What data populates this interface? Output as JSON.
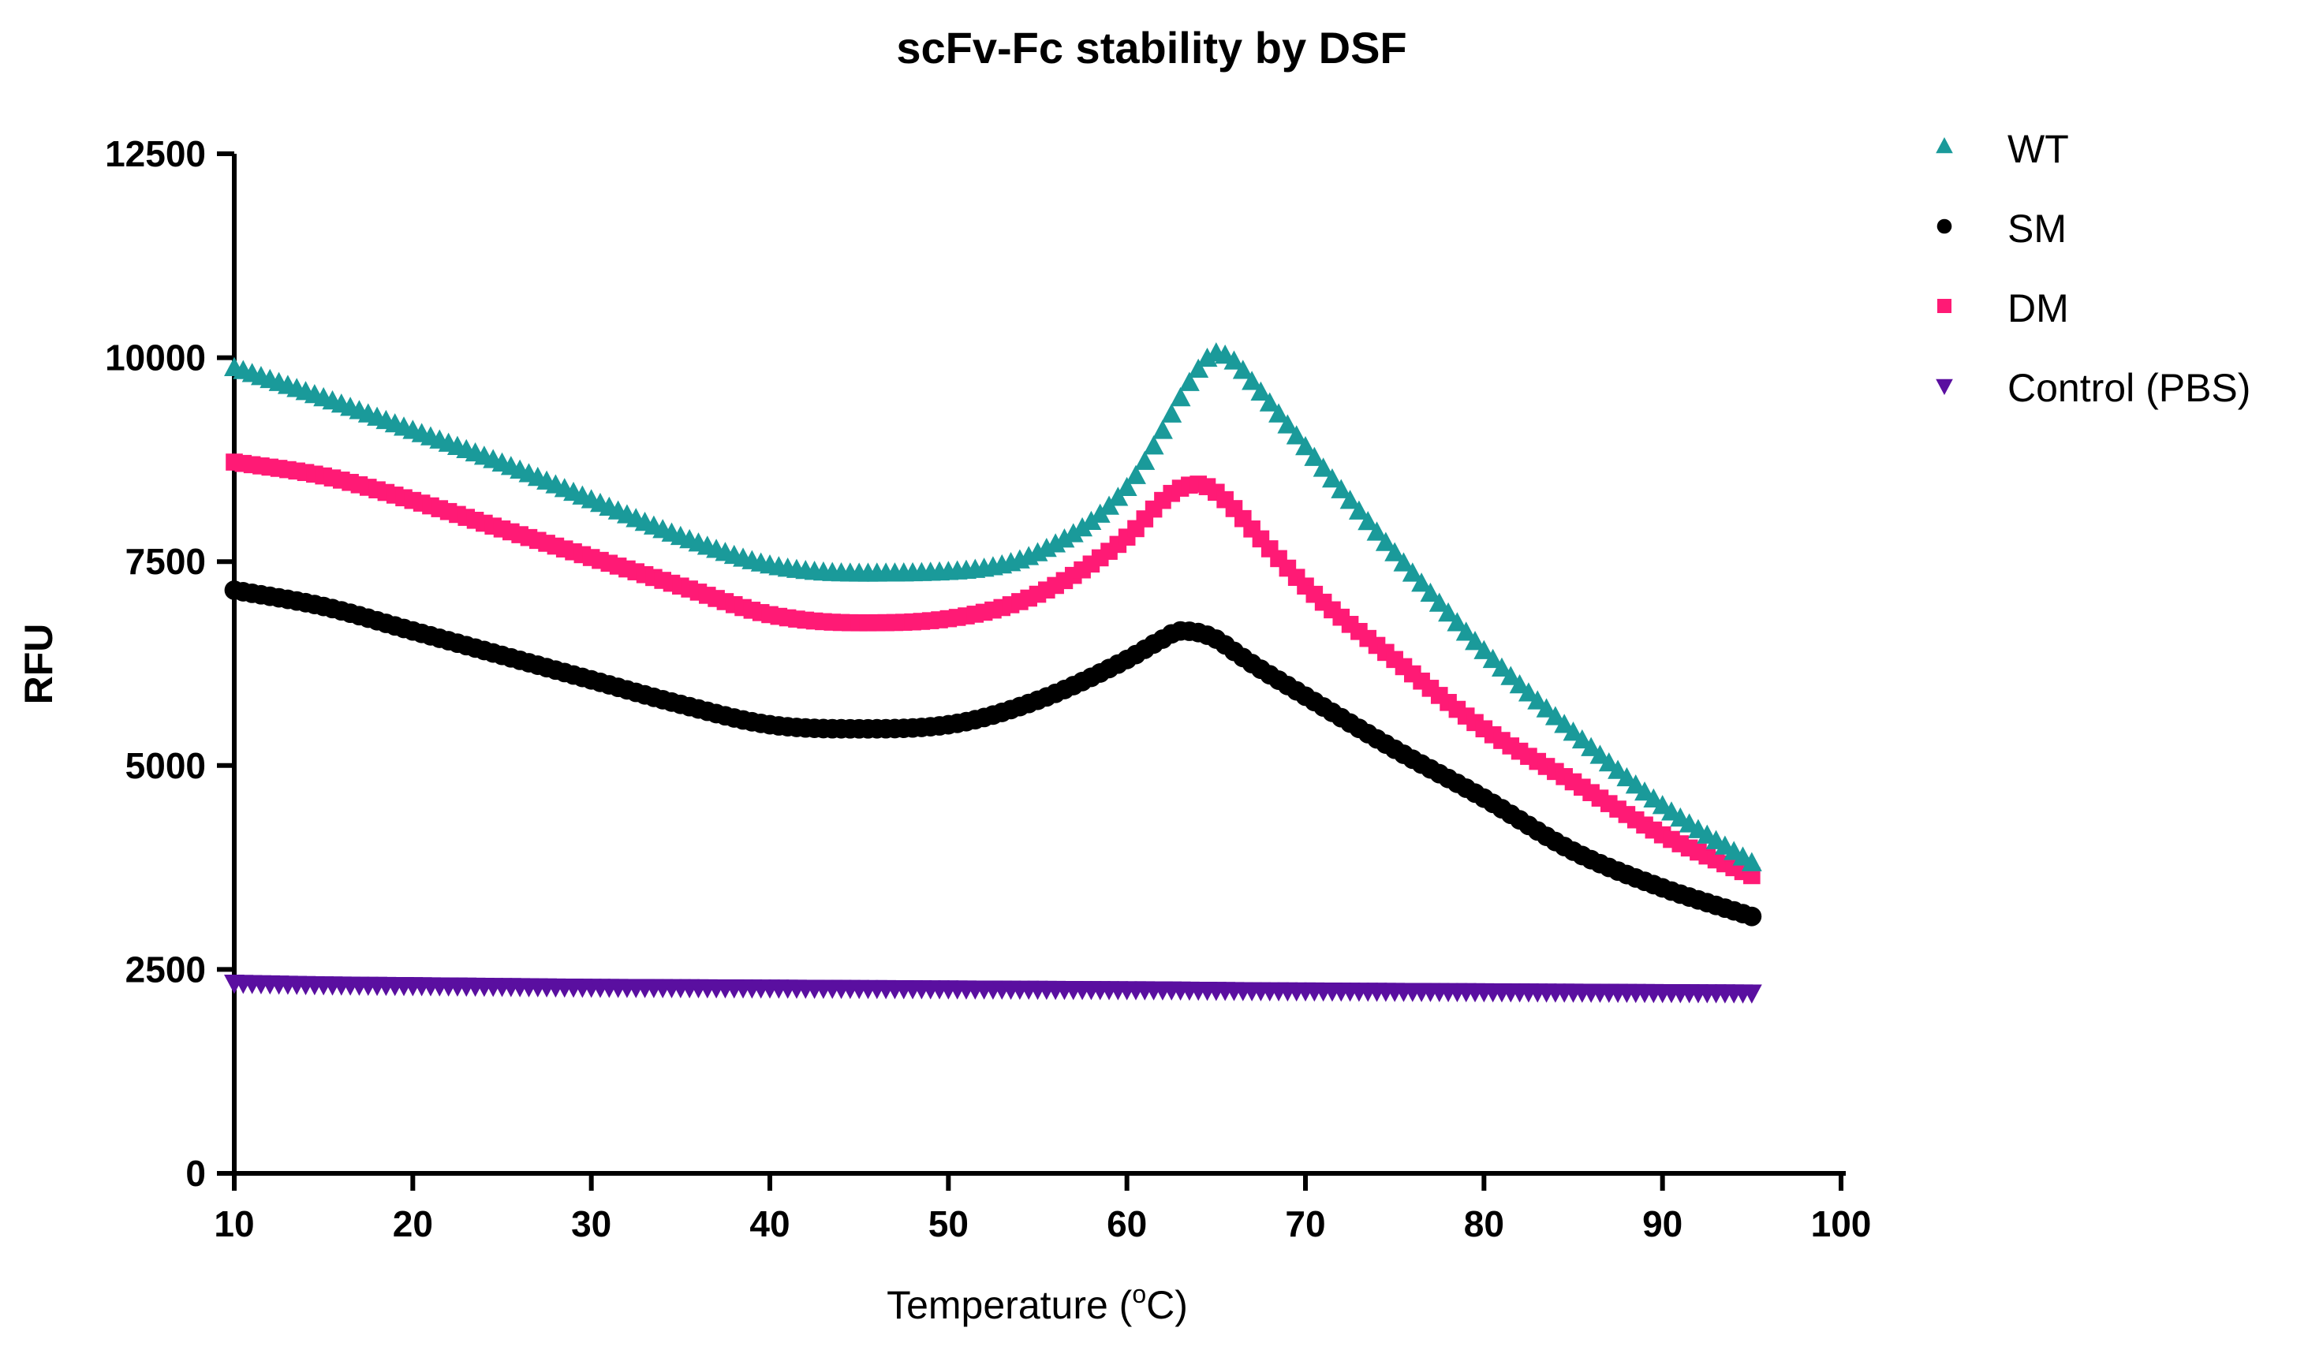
{
  "chart_data": {
    "type": "scatter",
    "title": "scFv-Fc stability by DSF",
    "xlabel": "Temperature (",
    "xlabel_sup": "o",
    "xlabel_unit": "C)",
    "ylabel": "RFU",
    "xlim": [
      10,
      100
    ],
    "ylim": [
      0,
      12500
    ],
    "x_ticks": [
      10,
      20,
      30,
      40,
      50,
      60,
      70,
      80,
      90,
      100
    ],
    "y_ticks": [
      0,
      2500,
      5000,
      7500,
      10000,
      12500
    ],
    "x_tick_labels": [
      "10",
      "20",
      "30",
      "40",
      "50",
      "60",
      "70",
      "80",
      "90",
      "100"
    ],
    "y_tick_labels": [
      "0",
      "2500",
      "5000",
      "7500",
      "10000",
      "12500"
    ],
    "legend_position": "top-right",
    "grid": false,
    "x": [
      10,
      15,
      20,
      25,
      30,
      35,
      40,
      45,
      50,
      55,
      60,
      62,
      63,
      64,
      65,
      66,
      67,
      70,
      75,
      80,
      85,
      90,
      95
    ],
    "series": [
      {
        "name": "WT",
        "marker": "triangle-up",
        "color": "#1a9a9a",
        "values": [
          9870,
          9500,
          9100,
          8700,
          8250,
          7800,
          7450,
          7350,
          7370,
          7600,
          8400,
          9100,
          9500,
          9850,
          10050,
          9950,
          9700,
          8900,
          7600,
          6400,
          5400,
          4500,
          3800
        ]
      },
      {
        "name": "SM",
        "marker": "circle",
        "color": "#000000",
        "values": [
          7150,
          6950,
          6650,
          6350,
          6050,
          5750,
          5500,
          5450,
          5500,
          5800,
          6300,
          6550,
          6650,
          6630,
          6550,
          6400,
          6250,
          5850,
          5200,
          4600,
          3950,
          3500,
          3150
        ]
      },
      {
        "name": "DM",
        "marker": "square",
        "color": "#ff1a75",
        "values": [
          8720,
          8550,
          8250,
          7900,
          7550,
          7200,
          6850,
          6750,
          6800,
          7100,
          7800,
          8250,
          8400,
          8450,
          8350,
          8150,
          7900,
          7200,
          6300,
          5450,
          4800,
          4150,
          3650
        ]
      },
      {
        "name": "Control (PBS)",
        "marker": "triangle-down",
        "color": "#5a0fa0",
        "values": [
          2340,
          2320,
          2310,
          2300,
          2290,
          2285,
          2280,
          2275,
          2270,
          2265,
          2260,
          2258,
          2256,
          2254,
          2252,
          2250,
          2248,
          2245,
          2240,
          2235,
          2230,
          2225,
          2220
        ]
      }
    ]
  }
}
